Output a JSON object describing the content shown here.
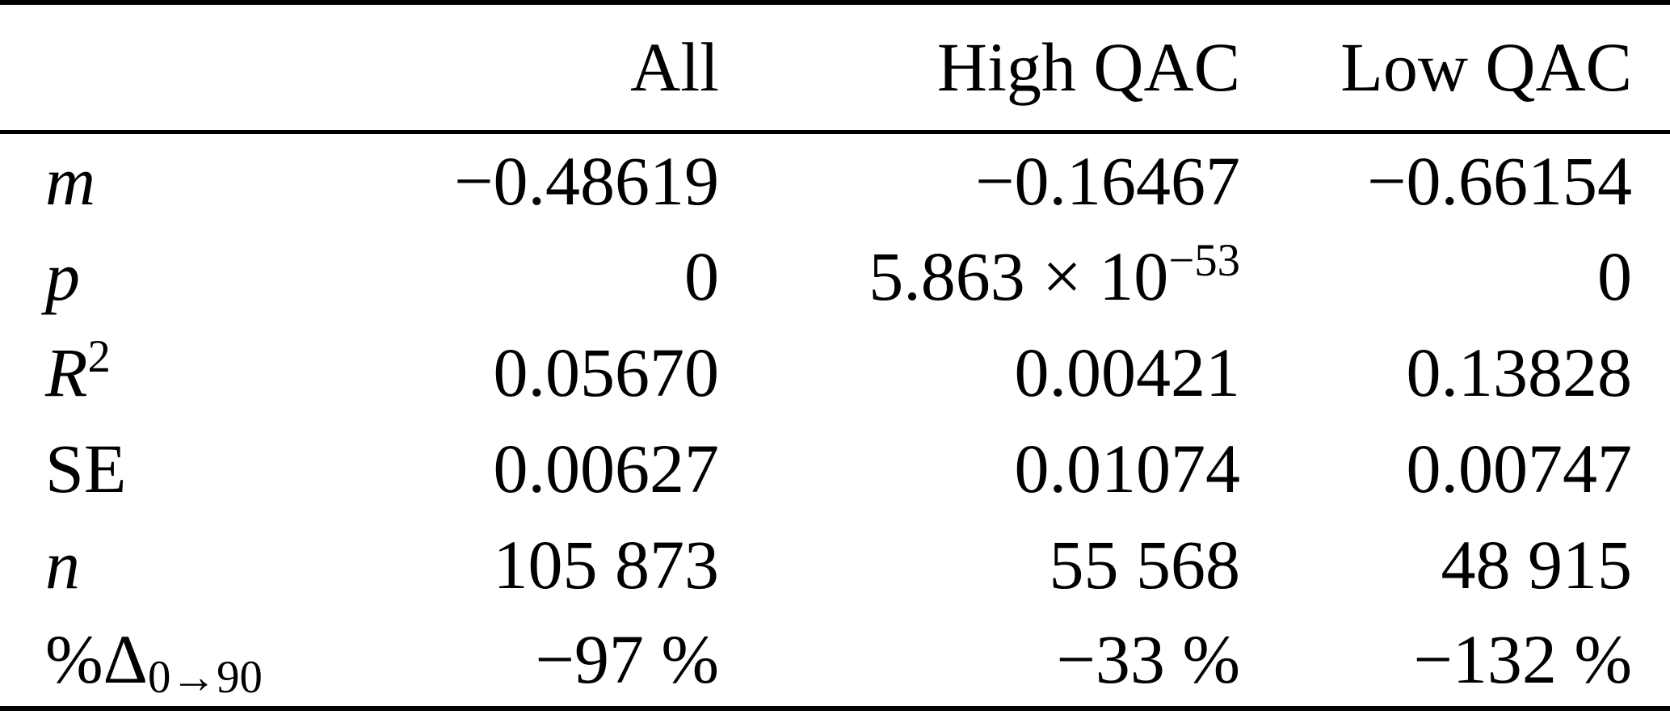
{
  "table": {
    "header": {
      "corner": "",
      "all": "All",
      "high_qac": "High QAC",
      "low_qac": "Low QAC"
    },
    "rows": [
      {
        "label": {
          "text": "m",
          "sup": "",
          "sub": ""
        },
        "values": [
          {
            "text": "−0.48619",
            "sup": ""
          },
          {
            "text": "−0.16467",
            "sup": ""
          },
          {
            "text": "−0.66154",
            "sup": ""
          }
        ]
      },
      {
        "label": {
          "text": "p",
          "sup": "",
          "sub": ""
        },
        "values": [
          {
            "text": "0",
            "sup": ""
          },
          {
            "text": "5.863 × 10",
            "sup": "−53"
          },
          {
            "text": "0",
            "sup": ""
          }
        ]
      },
      {
        "label": {
          "text": "R",
          "sup": "2",
          "sub": ""
        },
        "values": [
          {
            "text": "0.05670",
            "sup": ""
          },
          {
            "text": "0.00421",
            "sup": ""
          },
          {
            "text": "0.13828",
            "sup": ""
          }
        ]
      },
      {
        "label": {
          "text": "SE",
          "sup": "",
          "sub": ""
        },
        "values": [
          {
            "text": "0.00627",
            "sup": ""
          },
          {
            "text": "0.01074",
            "sup": ""
          },
          {
            "text": "0.00747",
            "sup": ""
          }
        ]
      },
      {
        "label": {
          "text": "n",
          "sup": "",
          "sub": ""
        },
        "values": [
          {
            "text": "105 873",
            "sup": ""
          },
          {
            "text": "55 568",
            "sup": ""
          },
          {
            "text": "48 915",
            "sup": ""
          }
        ]
      },
      {
        "label": {
          "text": "%Δ",
          "sup": "",
          "sub": "0→90"
        },
        "values": [
          {
            "text": "−97 %",
            "sup": ""
          },
          {
            "text": "−33 %",
            "sup": ""
          },
          {
            "text": "−132 %",
            "sup": ""
          }
        ]
      }
    ]
  }
}
